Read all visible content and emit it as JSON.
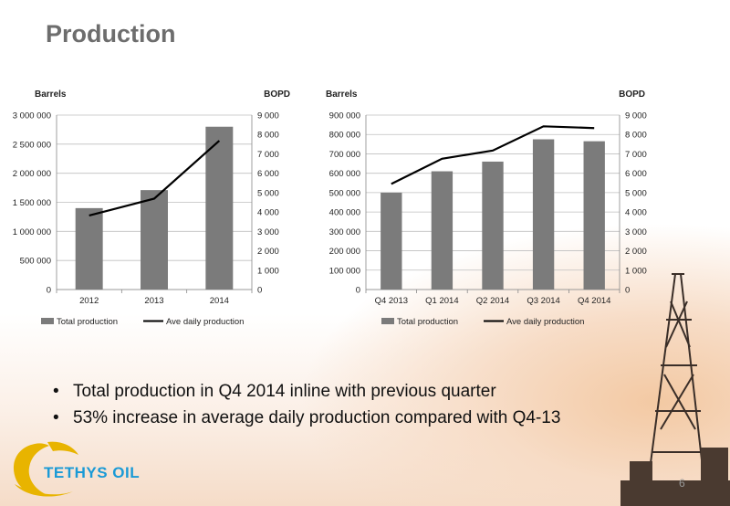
{
  "slide": {
    "title": "Production",
    "bullets": [
      "Total production in Q4 2014 inline with previous quarter",
      "53% increase in average daily production compared with Q4-13"
    ],
    "logo_text": "TETHYS OIL",
    "page_number": "6",
    "colors": {
      "bar": "#7b7b7b",
      "line": "#000000",
      "title": "#6d6d6d",
      "logo_blue": "#1a9ad6",
      "logo_gold": "#e8b400"
    }
  },
  "chart_data": [
    {
      "type": "bar",
      "categories": [
        "2012",
        "2013",
        "2014"
      ],
      "series": [
        {
          "name": "Total production",
          "type": "bar",
          "axis": "left",
          "values": [
            1400000,
            1710000,
            2800000
          ]
        },
        {
          "name": "Ave daily production",
          "type": "line",
          "axis": "right",
          "values": [
            3820,
            4690,
            7680
          ]
        }
      ],
      "y_left": {
        "label": "Barrels",
        "ylim": [
          0,
          3000000
        ],
        "ticks": [
          0,
          500000,
          1000000,
          1500000,
          2000000,
          2500000,
          3000000
        ],
        "tick_labels": [
          "0",
          "500 000",
          "1 000 000",
          "1 500 000",
          "2 000 000",
          "2 500 000",
          "3 000 000"
        ]
      },
      "y_right": {
        "label": "BOPD",
        "ylim": [
          0,
          9000
        ],
        "ticks": [
          0,
          1000,
          2000,
          3000,
          4000,
          5000,
          6000,
          7000,
          8000,
          9000
        ],
        "tick_labels": [
          "0",
          "1 000",
          "2 000",
          "3 000",
          "4 000",
          "5 000",
          "6 000",
          "7 000",
          "8 000",
          "9 000"
        ]
      },
      "legend": "bottom",
      "grid": true
    },
    {
      "type": "bar",
      "categories": [
        "Q4 2013",
        "Q1 2014",
        "Q2 2014",
        "Q3 2014",
        "Q4 2014"
      ],
      "series": [
        {
          "name": "Total production",
          "type": "bar",
          "axis": "left",
          "values": [
            500000,
            610000,
            660000,
            775000,
            765000
          ]
        },
        {
          "name": "Ave daily production",
          "type": "line",
          "axis": "right",
          "values": [
            5450,
            6750,
            7170,
            8420,
            8330
          ]
        }
      ],
      "y_left": {
        "label": "Barrels",
        "ylim": [
          0,
          900000
        ],
        "ticks": [
          0,
          100000,
          200000,
          300000,
          400000,
          500000,
          600000,
          700000,
          800000,
          900000
        ],
        "tick_labels": [
          "0",
          "100 000",
          "200 000",
          "300 000",
          "400 000",
          "500 000",
          "600 000",
          "700 000",
          "800 000",
          "900 000"
        ]
      },
      "y_right": {
        "label": "BOPD",
        "ylim": [
          0,
          9000
        ],
        "ticks": [
          0,
          1000,
          2000,
          3000,
          4000,
          5000,
          6000,
          7000,
          8000,
          9000
        ],
        "tick_labels": [
          "0",
          "1 000",
          "2 000",
          "3 000",
          "4 000",
          "5 000",
          "6 000",
          "7 000",
          "8 000",
          "9 000"
        ]
      },
      "legend": "bottom",
      "grid": true
    }
  ]
}
